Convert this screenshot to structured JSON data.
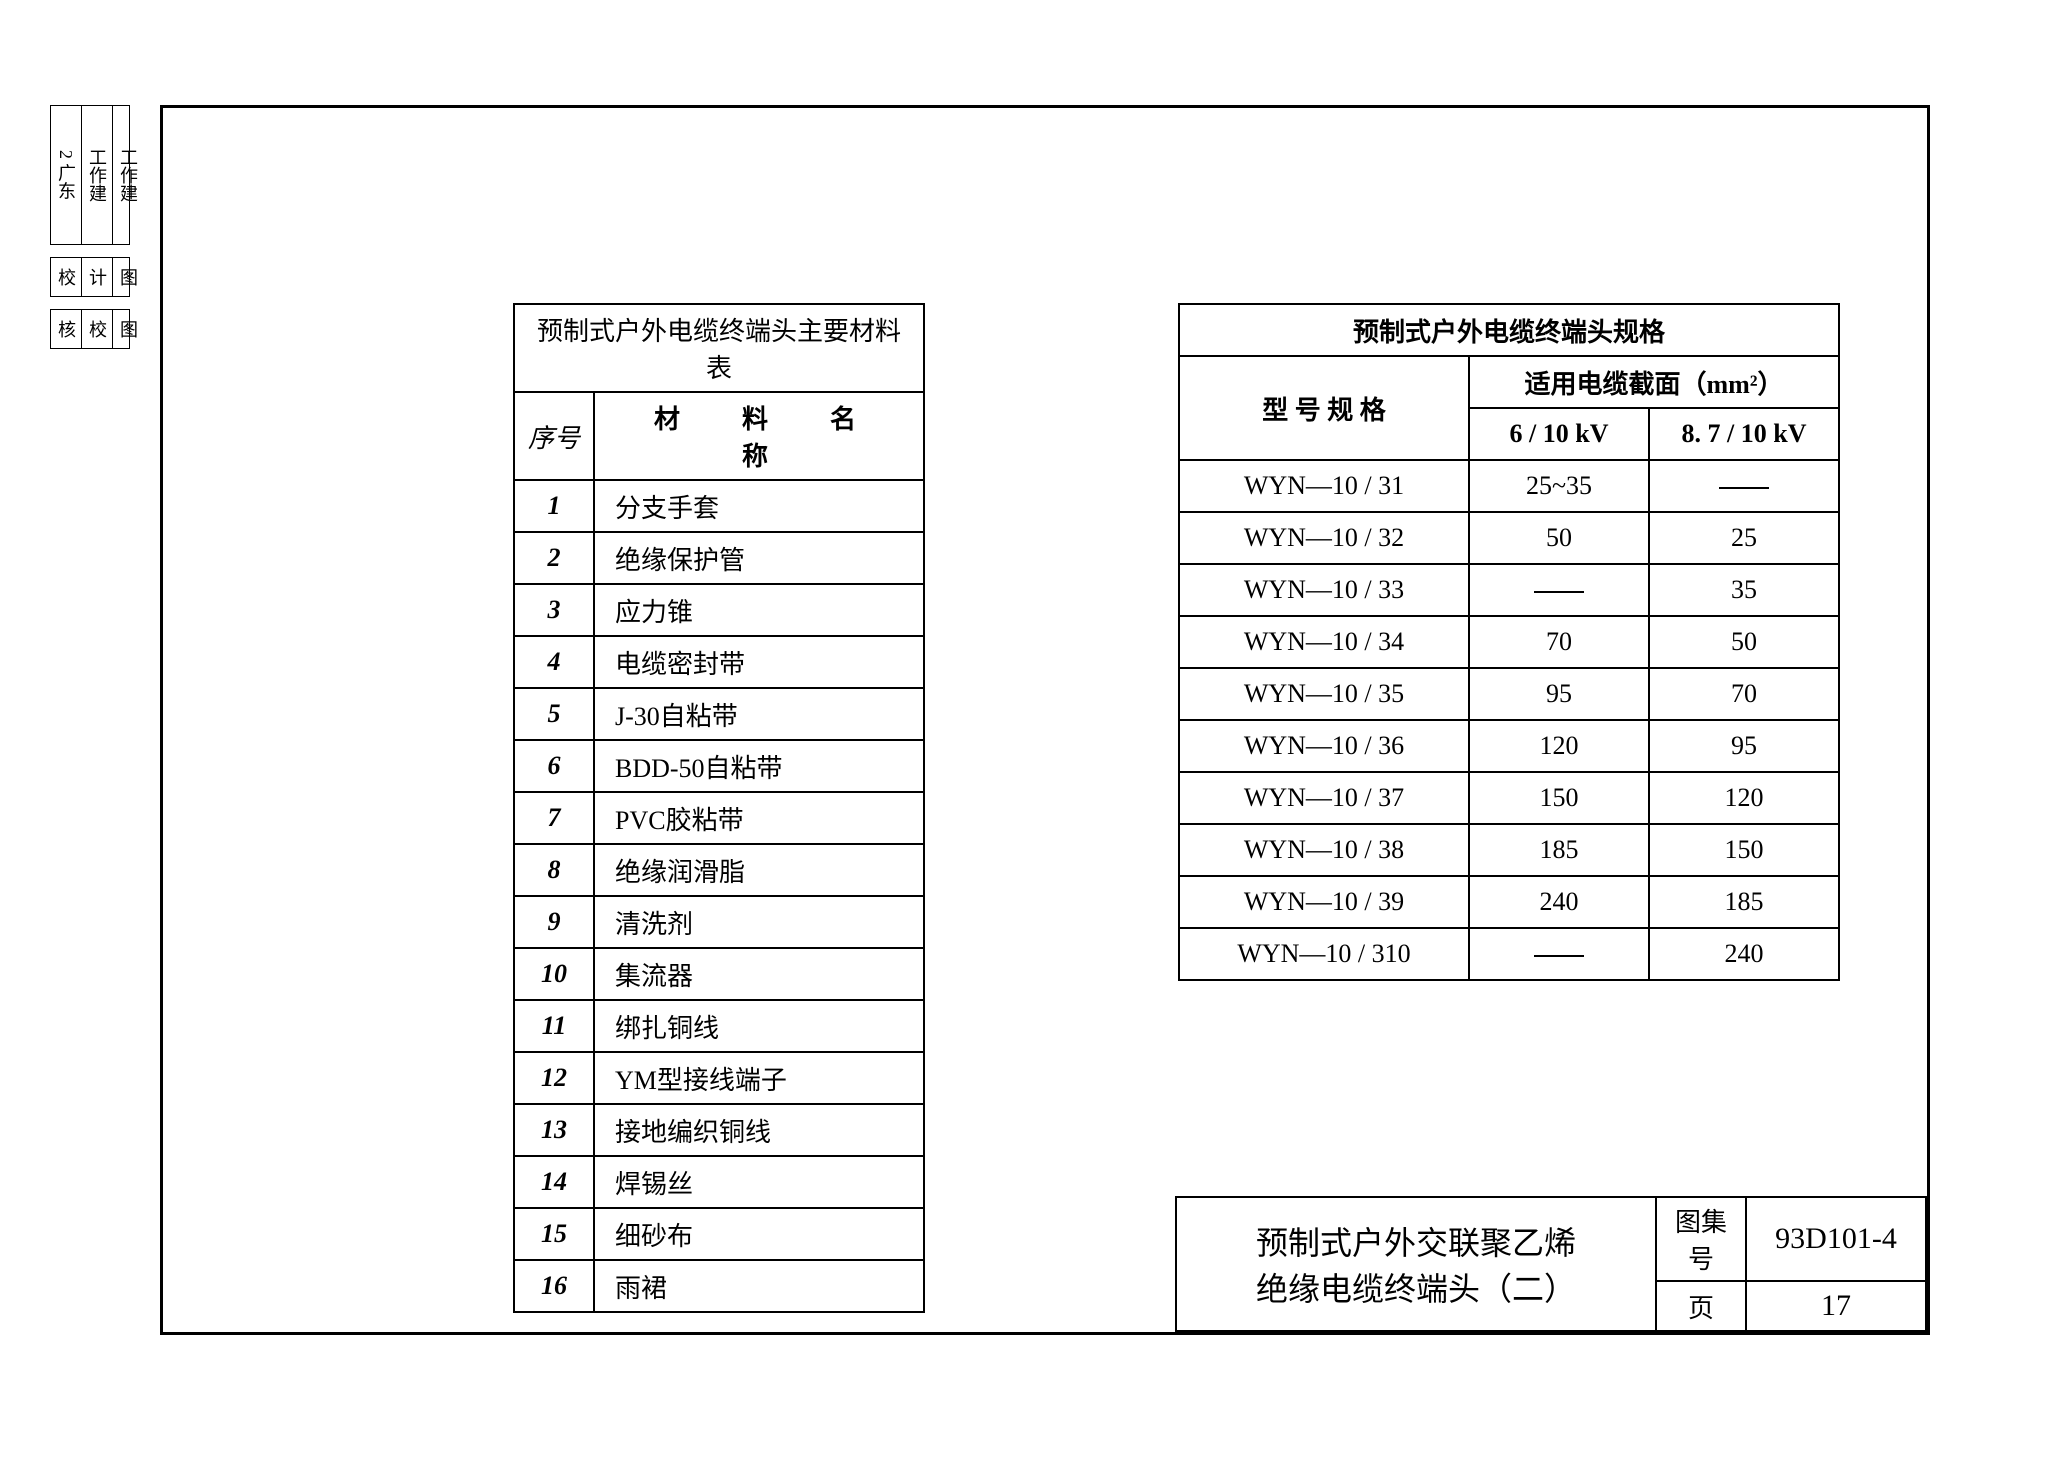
{
  "side": {
    "row1": [
      "2 广东",
      "工作建",
      "工作建"
    ],
    "row2": [
      "校",
      "计",
      "图"
    ],
    "row3": [
      "核",
      "校",
      "图"
    ]
  },
  "materials": {
    "title": "预制式户外电缆终端头主要材料表",
    "col_num": "序号",
    "col_name": "材　料　名　称",
    "rows": [
      {
        "n": "1",
        "name": "分支手套"
      },
      {
        "n": "2",
        "name": "绝缘保护管"
      },
      {
        "n": "3",
        "name": "应力锥"
      },
      {
        "n": "4",
        "name": "电缆密封带"
      },
      {
        "n": "5",
        "name": "J-30自粘带"
      },
      {
        "n": "6",
        "name": "BDD-50自粘带"
      },
      {
        "n": "7",
        "name": "PVC胶粘带"
      },
      {
        "n": "8",
        "name": "绝缘润滑脂"
      },
      {
        "n": "9",
        "name": "清洗剂"
      },
      {
        "n": "10",
        "name": "集流器"
      },
      {
        "n": "11",
        "name": "绑扎铜线"
      },
      {
        "n": "12",
        "name": "YM型接线端子"
      },
      {
        "n": "13",
        "name": "接地编织铜线"
      },
      {
        "n": "14",
        "name": "焊锡丝"
      },
      {
        "n": "15",
        "name": "细砂布"
      },
      {
        "n": "16",
        "name": "雨裙"
      }
    ]
  },
  "spec": {
    "title": "预制式户外电缆终端头规格",
    "col_model": "型 号 规 格",
    "col_section": "适用电缆截面（mm²）",
    "col_v1": "6 / 10 kV",
    "col_v2": "8. 7 / 10 kV",
    "rows": [
      {
        "model": "WYN—10 / 31",
        "v1": "25~35",
        "v2": "—"
      },
      {
        "model": "WYN—10 / 32",
        "v1": "50",
        "v2": "25"
      },
      {
        "model": "WYN—10 / 33",
        "v1": "—",
        "v2": "35"
      },
      {
        "model": "WYN—10 / 34",
        "v1": "70",
        "v2": "50"
      },
      {
        "model": "WYN—10 / 35",
        "v1": "95",
        "v2": "70"
      },
      {
        "model": "WYN—10 / 36",
        "v1": "120",
        "v2": "95"
      },
      {
        "model": "WYN—10 / 37",
        "v1": "150",
        "v2": "120"
      },
      {
        "model": "WYN—10 / 38",
        "v1": "185",
        "v2": "150"
      },
      {
        "model": "WYN—10 / 39",
        "v1": "240",
        "v2": "185"
      },
      {
        "model": "WYN—10 / 310",
        "v1": "—",
        "v2": "240"
      }
    ]
  },
  "titleblock": {
    "title_line1": "预制式户外交联聚乙烯",
    "title_line2": "绝缘电缆终端头（二）",
    "lbl_set": "图集号",
    "val_set": "93D101-4",
    "lbl_page": "页",
    "val_page": "17"
  },
  "style": {
    "text_color": "#000000",
    "bg_color": "#ffffff",
    "border_color": "#000000",
    "font_family": "SimSun",
    "table_border_width": 2,
    "outer_border_width": 3,
    "header_fontsize": 26,
    "cell_fontsize": 26,
    "titleblock_fontsize": 30
  }
}
